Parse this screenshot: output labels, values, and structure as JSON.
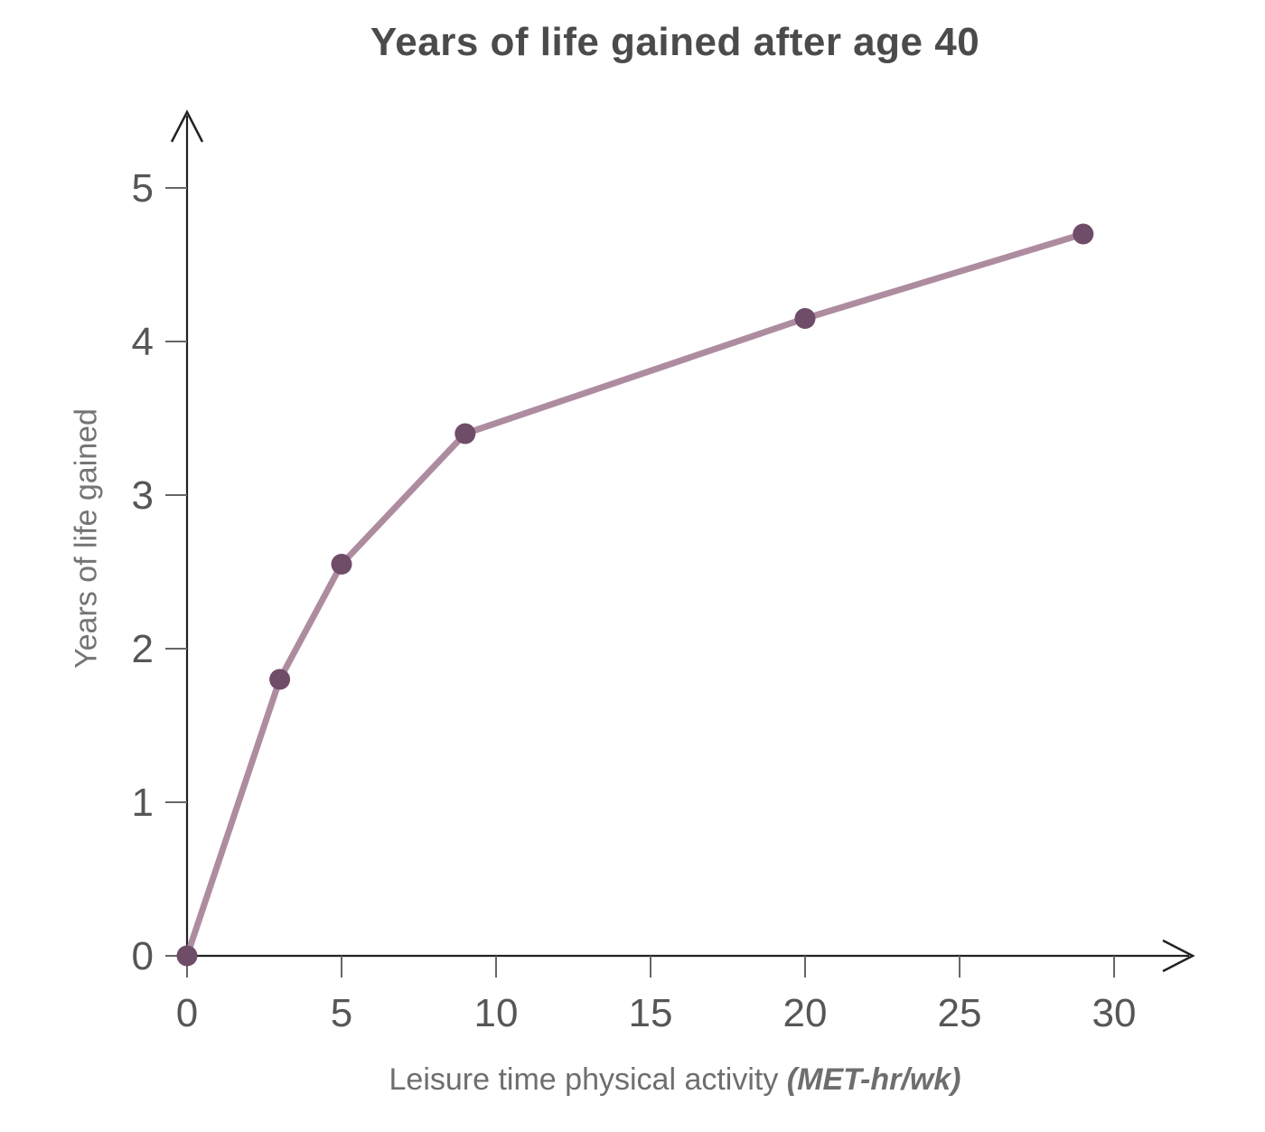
{
  "chart": {
    "title": "Years of life gained after age 40",
    "y_axis": {
      "label": "Years of life gained"
    },
    "x_axis": {
      "label": "Leisure time physical activity ",
      "unit": "(MET-hr/wk)"
    }
  },
  "chart_data": {
    "type": "line",
    "title": "Years of life gained after age 40",
    "xlabel": "Leisure time physical activity (MET-hr/wk)",
    "ylabel": "Years of life gained",
    "x": [
      0,
      3,
      5,
      9,
      20,
      29
    ],
    "y": [
      0,
      1.8,
      2.55,
      3.4,
      4.15,
      4.7
    ],
    "x_ticks": [
      0,
      5,
      10,
      15,
      20,
      25,
      30
    ],
    "y_ticks": [
      0,
      1,
      2,
      3,
      4,
      5
    ],
    "xlim": [
      0,
      32.5
    ],
    "ylim": [
      0,
      5.5
    ],
    "grid": false,
    "legend": false,
    "markers": true,
    "colors": {
      "line": "#ae8ca0",
      "point": "#6f4c67",
      "axis": "#222222",
      "tick": "#666666",
      "tick_label": "#565656",
      "title": "#4b4b4b",
      "axis_label": "#6e6e6e"
    }
  }
}
